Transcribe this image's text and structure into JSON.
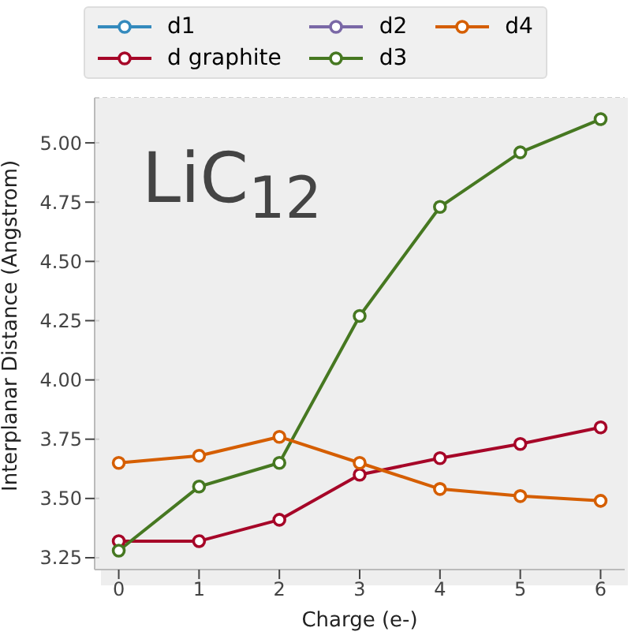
{
  "chart_data": {
    "type": "line",
    "xlabel": "Charge (e-)",
    "ylabel": "Interplanar Distance (Angstrom)",
    "annotations": [
      "LiC$_{12}$"
    ],
    "x": [
      0,
      1,
      2,
      3,
      4,
      5,
      6
    ],
    "series": [
      {
        "name": "d1",
        "color": "#348abd",
        "values": [
          null,
          null,
          null,
          null,
          null,
          null,
          null
        ]
      },
      {
        "name": "d graphite",
        "color": "#a60628",
        "values": [
          3.32,
          3.32,
          3.41,
          3.6,
          3.67,
          3.73,
          3.8
        ]
      },
      {
        "name": "d2",
        "color": "#7a68a6",
        "values": [
          null,
          null,
          null,
          null,
          null,
          null,
          null
        ]
      },
      {
        "name": "d3",
        "color": "#467821",
        "values": [
          3.28,
          3.55,
          3.65,
          4.27,
          4.73,
          4.96,
          5.1
        ]
      },
      {
        "name": "d4",
        "color": "#d55e00",
        "values": [
          3.65,
          3.68,
          3.76,
          3.65,
          3.54,
          3.51,
          3.49
        ]
      }
    ],
    "xlim": [
      -0.3,
      6.3
    ],
    "xticks": [
      0,
      1,
      2,
      3,
      4,
      5,
      6
    ],
    "ylim": [
      3.2,
      5.19
    ],
    "yticks": [
      {
        "value": 3.25,
        "label": "3.25"
      },
      {
        "value": 3.5,
        "label": "3.50"
      },
      {
        "value": 3.75,
        "label": "3.75"
      },
      {
        "value": 4.0,
        "label": "4.00"
      },
      {
        "value": 4.25,
        "label": "4.25"
      },
      {
        "value": 4.5,
        "label": "4.50"
      },
      {
        "value": 4.75,
        "label": "4.75"
      },
      {
        "value": 5.0,
        "label": "5.00"
      }
    ],
    "grid": true,
    "legend": "top",
    "marker": "circle",
    "line_style": "solid"
  }
}
